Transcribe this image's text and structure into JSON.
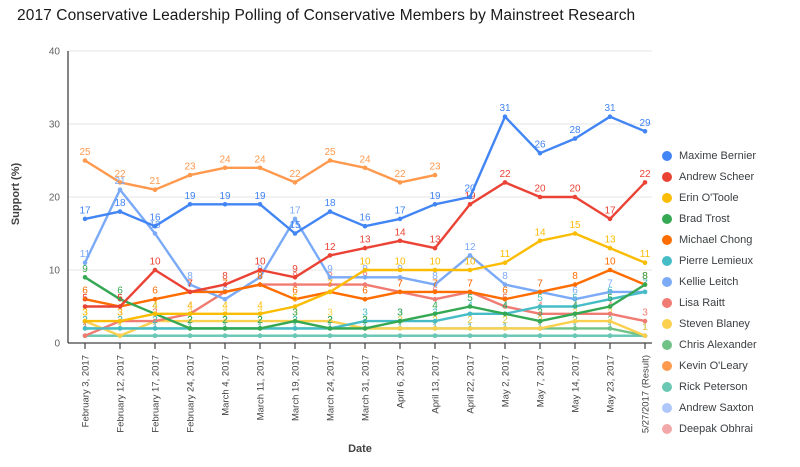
{
  "title": "2017 Conservative Leadership Polling of Conservative Members by Mainstreet Research",
  "y_axis": {
    "label": "Support (%)",
    "ticks": [
      0,
      10,
      20,
      30,
      40
    ]
  },
  "x_axis": {
    "label": "Date"
  },
  "legend": {
    "position": "right"
  },
  "chart_data": {
    "type": "line",
    "title": "2017 Conservative Leadership Polling of Conservative Members by Mainstreet Research",
    "xlabel": "Date",
    "ylabel": "Support (%)",
    "ylim": [
      0,
      40
    ],
    "grid": true,
    "legend_position": "right",
    "point_labels": true,
    "categories": [
      "February 3, 2017",
      "February 12, 2017",
      "February 17, 2017",
      "February 24, 2017",
      "March 4, 2017",
      "March 11, 2017",
      "March 19, 2017",
      "March 24, 2017",
      "March 31, 2017",
      "April 6, 2017",
      "April 13, 2017",
      "April 22, 2017",
      "May 2, 2017",
      "May 7, 2017",
      "May 14, 2017",
      "May 23, 2017",
      "5/27/2017 (Result)"
    ],
    "series": [
      {
        "name": "Maxime Bernier",
        "color": "#4285f4",
        "values": [
          17,
          18,
          16,
          19,
          19,
          19,
          15,
          18,
          16,
          17,
          19,
          20,
          31,
          26,
          28,
          31,
          29
        ]
      },
      {
        "name": "Andrew Scheer",
        "color": "#ea4335",
        "values": [
          5,
          5,
          10,
          7,
          8,
          10,
          9,
          12,
          13,
          14,
          13,
          19,
          22,
          20,
          20,
          17,
          22
        ]
      },
      {
        "name": "Erin O'Toole",
        "color": "#fbbc04",
        "values": [
          3,
          3,
          4,
          4,
          4,
          4,
          5,
          7,
          10,
          10,
          10,
          10,
          11,
          14,
          15,
          13,
          11
        ]
      },
      {
        "name": "Brad Trost",
        "color": "#34a853",
        "values": [
          9,
          6,
          4,
          2,
          2,
          2,
          3,
          2,
          2,
          3,
          4,
          5,
          4,
          3,
          4,
          5,
          8
        ]
      },
      {
        "name": "Michael Chong",
        "color": "#ff6d01",
        "values": [
          6,
          5,
          6,
          7,
          7,
          8,
          6,
          7,
          6,
          7,
          7,
          7,
          6,
          7,
          8,
          10,
          8
        ]
      },
      {
        "name": "Pierre Lemieux",
        "color": "#46bdc6",
        "values": [
          2,
          2,
          2,
          2,
          2,
          2,
          2,
          2,
          3,
          3,
          3,
          4,
          4,
          5,
          5,
          6,
          7
        ]
      },
      {
        "name": "Kellie Leitch",
        "color": "#7baaf7",
        "values": [
          11,
          21,
          15,
          8,
          6,
          9,
          17,
          9,
          9,
          9,
          8,
          12,
          8,
          7,
          6,
          7,
          7
        ]
      },
      {
        "name": "Lisa Raitt",
        "color": "#f07b72",
        "values": [
          1,
          3,
          3,
          4,
          7,
          8,
          8,
          8,
          8,
          7,
          6,
          7,
          5,
          4,
          4,
          4,
          3
        ]
      },
      {
        "name": "Steven Blaney",
        "color": "#fcd04f",
        "values": [
          3,
          1,
          3,
          3,
          3,
          3,
          3,
          3,
          2,
          2,
          2,
          2,
          2,
          2,
          3,
          3,
          1
        ]
      },
      {
        "name": "Chris Alexander",
        "color": "#71c287",
        "values": [
          2,
          2,
          2,
          2,
          2,
          2,
          2,
          2,
          2,
          2,
          2,
          2,
          2,
          2,
          2,
          2,
          1
        ]
      },
      {
        "name": "Kevin O'Leary",
        "color": "#ff994d",
        "values": [
          25,
          22,
          21,
          23,
          24,
          24,
          22,
          25,
          24,
          22,
          23,
          null,
          null,
          null,
          null,
          null,
          null
        ]
      },
      {
        "name": "Rick Peterson",
        "color": "#68c8b4",
        "values": [
          1,
          1,
          1,
          1,
          1,
          1,
          1,
          1,
          1,
          1,
          1,
          1,
          1,
          1,
          1,
          1,
          1
        ]
      },
      {
        "name": "Andrew Saxton",
        "color": "#aec6f8",
        "values": [
          1,
          1,
          1,
          1,
          1,
          1,
          1,
          1,
          1,
          1,
          1,
          1,
          1,
          1,
          1,
          1,
          1
        ]
      },
      {
        "name": "Deepak Obhrai",
        "color": "#f2a8a8",
        "values": [
          1,
          1,
          1,
          1,
          1,
          1,
          1,
          1,
          1,
          1,
          1,
          1,
          1,
          1,
          1,
          1,
          1
        ]
      }
    ]
  }
}
